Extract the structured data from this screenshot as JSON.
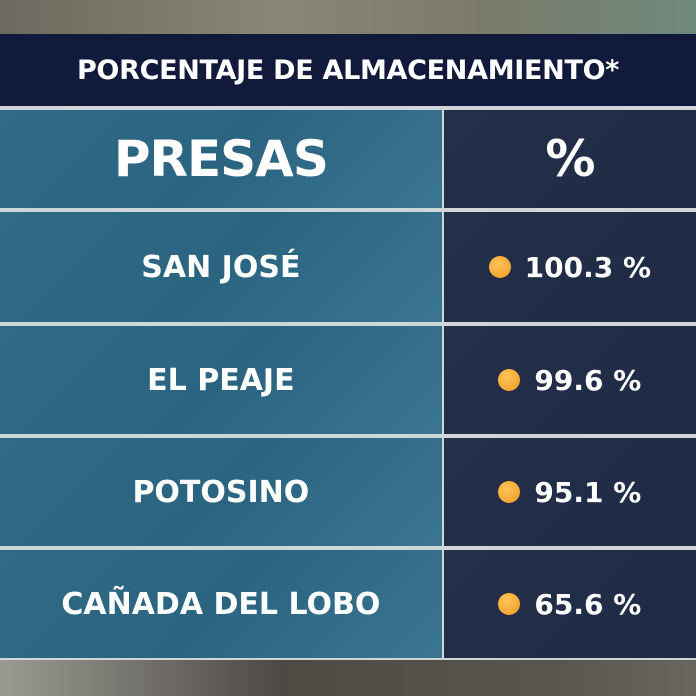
{
  "title": "PORCENTAJE DE ALMACENAMIENTO*",
  "header": {
    "presas": "PRESAS",
    "percent": "%"
  },
  "rows": [
    {
      "name": "SAN JOSÉ",
      "value": "100.3 %"
    },
    {
      "name": "EL PEAJE",
      "value": "99.6 %"
    },
    {
      "name": "POTOSINO",
      "value": "95.1 %"
    },
    {
      "name": "CAÑADA DEL LOBO",
      "value": "65.6 %"
    }
  ],
  "colors": {
    "title_band": "#111a3a",
    "left_column": "#2d6883",
    "right_column": "#222d47",
    "indicator": "#f5a42b"
  }
}
